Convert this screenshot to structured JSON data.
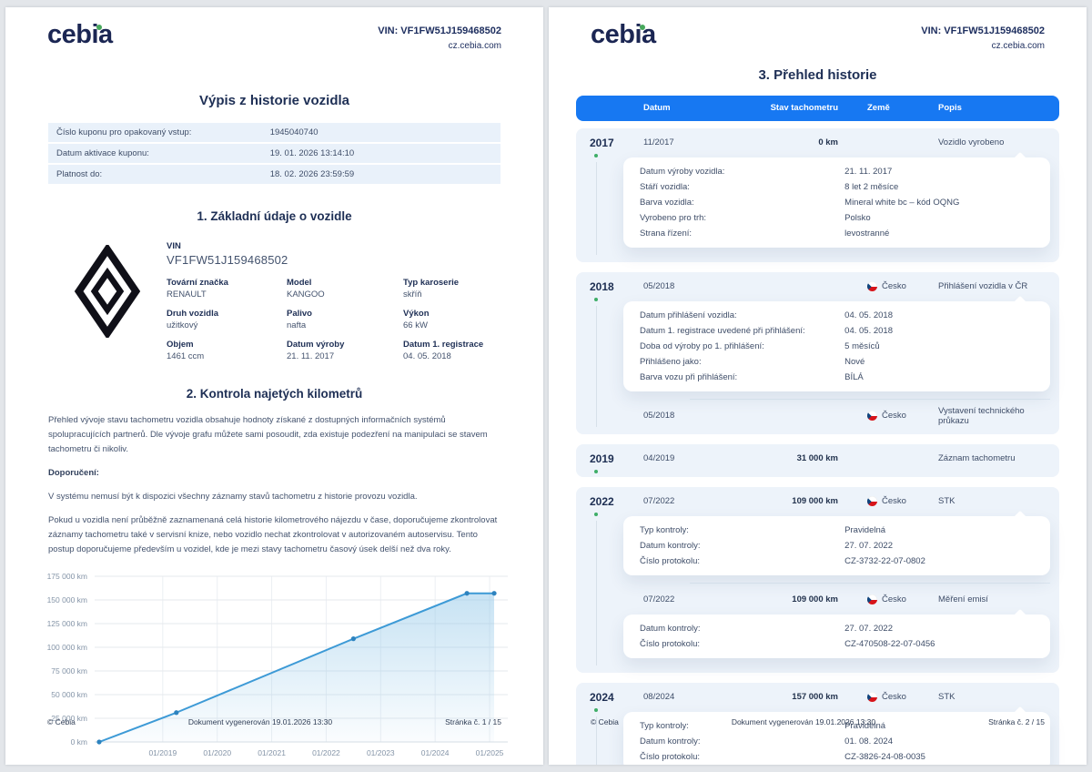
{
  "brand": {
    "logo_text": "cebia",
    "vin_label": "VIN: VF1FW51J159468502",
    "site": "cz.cebia.com"
  },
  "left_page": {
    "title": "Výpis z historie vozidla",
    "coupon_rows": [
      {
        "label": "Číslo kuponu pro opakovaný vstup:",
        "value": "1945040740"
      },
      {
        "label": "Datum aktivace kuponu:",
        "value": "19. 01. 2026 13:14:10"
      },
      {
        "label": "Platnost do:",
        "value": "18. 02. 2026 23:59:59"
      }
    ],
    "section1_title": "1. Základní údaje o vozidle",
    "vin_field": {
      "label": "VIN",
      "value": "VF1FW51J159468502"
    },
    "vehicle_fields": [
      {
        "label": "Tovární značka",
        "value": "RENAULT"
      },
      {
        "label": "Model",
        "value": "KANGOO"
      },
      {
        "label": "Typ karoserie",
        "value": "skříň"
      },
      {
        "label": "Druh vozidla",
        "value": "užitkový"
      },
      {
        "label": "Palivo",
        "value": "nafta"
      },
      {
        "label": "Výkon",
        "value": "66 kW"
      },
      {
        "label": "Objem",
        "value": "1461 ccm"
      },
      {
        "label": "Datum výroby",
        "value": "21. 11. 2017"
      },
      {
        "label": "Datum 1. registrace",
        "value": "04. 05. 2018"
      }
    ],
    "section2_title": "2. Kontrola najetých kilometrů",
    "paragraphs": [
      {
        "text": "Přehled vývoje stavu tachometru vozidla obsahuje hodnoty získané z dostupných informačních systémů spolupracujících partnerů. Dle vývoje grafu můžete sami posoudit, zda existuje podezření na manipulaci se stavem tachometru či nikoliv.",
        "bold": false
      },
      {
        "text": "Doporučení:",
        "bold": true
      },
      {
        "text": "V systému nemusí být k dispozici všechny záznamy stavů tachometru z historie provozu vozidla.",
        "bold": false
      },
      {
        "text": "Pokud u vozidla není průběžně zaznamenaná celá historie kilometrového nájezdu v čase, doporučujeme zkontrolovat záznamy tachometru také v servisní knize, nebo vozidlo nechat zkontrolovat v autorizovaném autoservisu. Tento postup doporučujeme především u vozidel, kde je mezi stavy tachometru časový úsek delší než dva roky.",
        "bold": false
      }
    ],
    "footer": {
      "left": "© Cebia",
      "center": "Dokument vygenerován 19.01.2026 13:30",
      "right": "Stránka č. 1 / 15"
    }
  },
  "chart_data": {
    "type": "area",
    "title": "",
    "xlabel": "",
    "ylabel": "km",
    "grid": true,
    "legend": false,
    "ylim": [
      0,
      175000
    ],
    "x_domain": [
      "10/2017",
      "05/2025"
    ],
    "x_ticks": [
      "01/2019",
      "01/2020",
      "01/2021",
      "01/2022",
      "01/2023",
      "01/2024",
      "01/2025"
    ],
    "y_ticks": [
      {
        "label": "0 km",
        "value": 0
      },
      {
        "label": "25 000 km",
        "value": 25000
      },
      {
        "label": "50 000 km",
        "value": 50000
      },
      {
        "label": "75 000 km",
        "value": 75000
      },
      {
        "label": "100 000 km",
        "value": 100000
      },
      {
        "label": "125 000 km",
        "value": 125000
      },
      {
        "label": "150 000 km",
        "value": 150000
      },
      {
        "label": "175 000 km",
        "value": 175000
      }
    ],
    "points": [
      {
        "date": "11/2017",
        "km": 0
      },
      {
        "date": "04/2019",
        "km": 31000
      },
      {
        "date": "07/2022",
        "km": 109000
      },
      {
        "date": "08/2024",
        "km": 157000
      },
      {
        "date": "02/2025",
        "km": 157000
      }
    ],
    "line_color": "#3d9ad6",
    "dot_color": "#2d83bf",
    "fill_color": "#8fc6e8"
  },
  "right_page": {
    "title": "3. Přehled historie",
    "columns": {
      "date": "Datum",
      "odometer": "Stav tachometru",
      "country": "Země",
      "description": "Popis"
    },
    "groups": [
      {
        "year": "2017",
        "rows": [
          {
            "date": "11/2017",
            "odometer": "0 km",
            "country": "",
            "description": "Vozidlo vyrobeno",
            "details": [
              {
                "label": "Datum výroby vozidla:",
                "value": "21. 11. 2017"
              },
              {
                "label": "Stáří vozidla:",
                "value": "8 let 2 měsíce"
              },
              {
                "label": "Barva vozidla:",
                "value": "Mineral white bc – kód OQNG"
              },
              {
                "label": "Vyrobeno pro trh:",
                "value": "Polsko"
              },
              {
                "label": "Strana řízení:",
                "value": "levostranné"
              }
            ]
          }
        ]
      },
      {
        "year": "2018",
        "rows": [
          {
            "date": "05/2018",
            "odometer": "",
            "country": "Česko",
            "description": "Přihlášení vozidla v ČR",
            "details": [
              {
                "label": "Datum přihlášení vozidla:",
                "value": "04. 05. 2018"
              },
              {
                "label": "Datum 1. registrace uvedené při přihlášení:",
                "value": "04. 05. 2018"
              },
              {
                "label": "Doba od výroby po 1. přihlášení:",
                "value": "5 měsíců"
              },
              {
                "label": "Přihlášeno jako:",
                "value": "Nové"
              },
              {
                "label": "Barva vozu při přihlášení:",
                "value": "BÍLÁ"
              }
            ]
          },
          {
            "date": "05/2018",
            "odometer": "",
            "country": "Česko",
            "description": "Vystavení technického průkazu"
          }
        ]
      },
      {
        "year": "2019",
        "rows": [
          {
            "date": "04/2019",
            "odometer": "31 000 km",
            "country": "",
            "description": "Záznam tachometru"
          }
        ]
      },
      {
        "year": "2022",
        "rows": [
          {
            "date": "07/2022",
            "odometer": "109 000 km",
            "country": "Česko",
            "description": "STK",
            "details": [
              {
                "label": "Typ kontroly:",
                "value": "Pravidelná"
              },
              {
                "label": "Datum kontroly:",
                "value": "27. 07. 2022"
              },
              {
                "label": "Číslo protokolu:",
                "value": "CZ-3732-22-07-0802"
              }
            ]
          },
          {
            "date": "07/2022",
            "odometer": "109 000 km",
            "country": "Česko",
            "description": "Měření emisí",
            "details": [
              {
                "label": "Datum kontroly:",
                "value": "27. 07. 2022"
              },
              {
                "label": "Číslo protokolu:",
                "value": "CZ-470508-22-07-0456"
              }
            ]
          }
        ]
      },
      {
        "year": "2024",
        "trailing_divider": true,
        "rows": [
          {
            "date": "08/2024",
            "odometer": "157 000 km",
            "country": "Česko",
            "description": "STK",
            "details": [
              {
                "label": "Typ kontroly:",
                "value": "Pravidelná"
              },
              {
                "label": "Datum kontroly:",
                "value": "01. 08. 2024"
              },
              {
                "label": "Číslo protokolu:",
                "value": "CZ-3826-24-08-0035"
              }
            ]
          }
        ]
      }
    ],
    "footer": {
      "left": "© Cebia",
      "center": "Dokument vygenerován 19.01.2026 13:30",
      "right": "Stránka č. 2 / 15"
    }
  },
  "colors": {
    "accent_blue": "#1778f2",
    "band_bg": "#edf3fa",
    "navy": "#1e2f55",
    "flag_red": "#d7141a",
    "flag_blue": "#11457e",
    "timeline_green": "#3fae68"
  }
}
